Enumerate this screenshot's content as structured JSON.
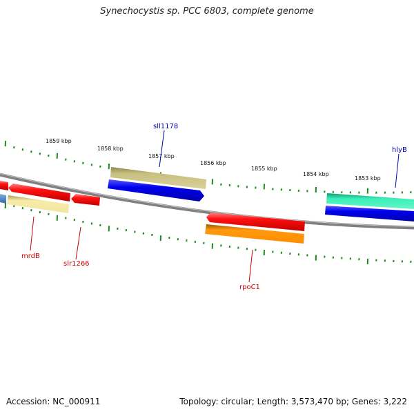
{
  "title": "Synechocystis sp. PCC 6803, complete genome",
  "footer": {
    "accession": "Accession: NC_000911",
    "summary": "Topology: circular; Length: 3,573,470 bp; Genes: 3,222"
  },
  "ruler_labels": [
    "1859 kbp",
    "1858 kbp",
    "1857 kbp",
    "1856 kbp",
    "1855 kbp",
    "1854 kbp",
    "1853 kbp"
  ],
  "forward_gene_labels": [
    "sll1178",
    "hlyB"
  ],
  "reverse_gene_labels": [
    "mrdB",
    "slr1266",
    "rpoC1"
  ],
  "colors": {
    "backbone": "#7a7a7a",
    "tick": "#1a8a1a",
    "forward_label": "#0000aa",
    "reverse_label": "#cc0000",
    "red": "#ee0000",
    "blue": "#0000ee",
    "khaki": "#b0a868",
    "pale_yellow": "#f0e4a0",
    "orange": "#ff8c00",
    "teal": "#33ddaa",
    "steel_blue": "#5588bb"
  }
}
